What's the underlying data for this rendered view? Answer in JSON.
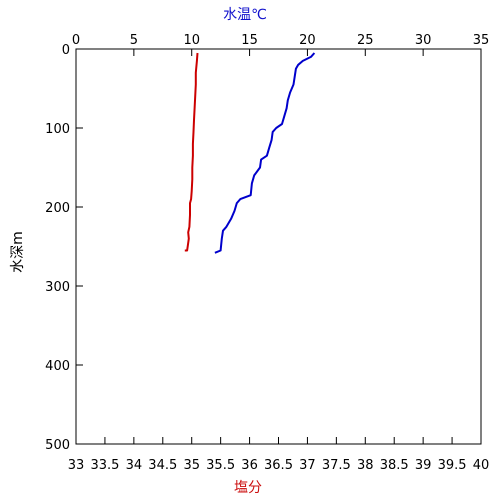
{
  "chart_data": {
    "type": "line",
    "top_axis": {
      "label": "水温℃",
      "label_color": "#1010cc",
      "range": [
        0,
        35
      ],
      "ticks": [
        "0",
        "5",
        "10",
        "15",
        "20",
        "25",
        "30",
        "35"
      ]
    },
    "bottom_axis": {
      "label": "塩分",
      "label_color": "#cc1010",
      "range": [
        33,
        40
      ],
      "ticks": [
        "33",
        "33.5",
        "34",
        "34.5",
        "35",
        "35.5",
        "36",
        "36.5",
        "37",
        "37.5",
        "38",
        "38.5",
        "39",
        "39.5",
        "40"
      ]
    },
    "left_axis": {
      "label": "水深m",
      "range": [
        0,
        500
      ],
      "inverted": true,
      "ticks": [
        "0",
        "100",
        "200",
        "300",
        "400",
        "500"
      ]
    },
    "grid": false,
    "series": [
      {
        "axis": "top",
        "color": "#0000cc",
        "points": [
          [
            20.6,
            5
          ],
          [
            20.3,
            10
          ],
          [
            19.6,
            15
          ],
          [
            19.2,
            20
          ],
          [
            19.0,
            25
          ],
          [
            18.9,
            35
          ],
          [
            18.8,
            45
          ],
          [
            18.5,
            55
          ],
          [
            18.3,
            65
          ],
          [
            18.2,
            75
          ],
          [
            18.0,
            85
          ],
          [
            17.8,
            95
          ],
          [
            17.3,
            100
          ],
          [
            17.0,
            105
          ],
          [
            16.9,
            115
          ],
          [
            16.7,
            125
          ],
          [
            16.5,
            135
          ],
          [
            16.0,
            140
          ],
          [
            15.9,
            150
          ],
          [
            15.4,
            160
          ],
          [
            15.2,
            170
          ],
          [
            15.1,
            185
          ],
          [
            14.2,
            190
          ],
          [
            13.9,
            195
          ],
          [
            13.7,
            205
          ],
          [
            13.4,
            215
          ],
          [
            13.0,
            225
          ],
          [
            12.7,
            230
          ],
          [
            12.6,
            240
          ],
          [
            12.5,
            255
          ],
          [
            12.0,
            258
          ]
        ]
      },
      {
        "axis": "bottom",
        "color": "#cc0000",
        "points": [
          [
            35.1,
            5
          ],
          [
            35.09,
            15
          ],
          [
            35.07,
            30
          ],
          [
            35.07,
            45
          ],
          [
            35.06,
            60
          ],
          [
            35.05,
            75
          ],
          [
            35.04,
            90
          ],
          [
            35.03,
            105
          ],
          [
            35.02,
            120
          ],
          [
            35.02,
            135
          ],
          [
            35.01,
            150
          ],
          [
            35.01,
            165
          ],
          [
            35.0,
            180
          ],
          [
            34.99,
            190
          ],
          [
            34.97,
            195
          ],
          [
            34.97,
            210
          ],
          [
            34.96,
            225
          ],
          [
            34.94,
            232
          ],
          [
            34.95,
            240
          ],
          [
            34.93,
            250
          ],
          [
            34.92,
            255
          ],
          [
            34.88,
            255
          ]
        ]
      }
    ]
  }
}
